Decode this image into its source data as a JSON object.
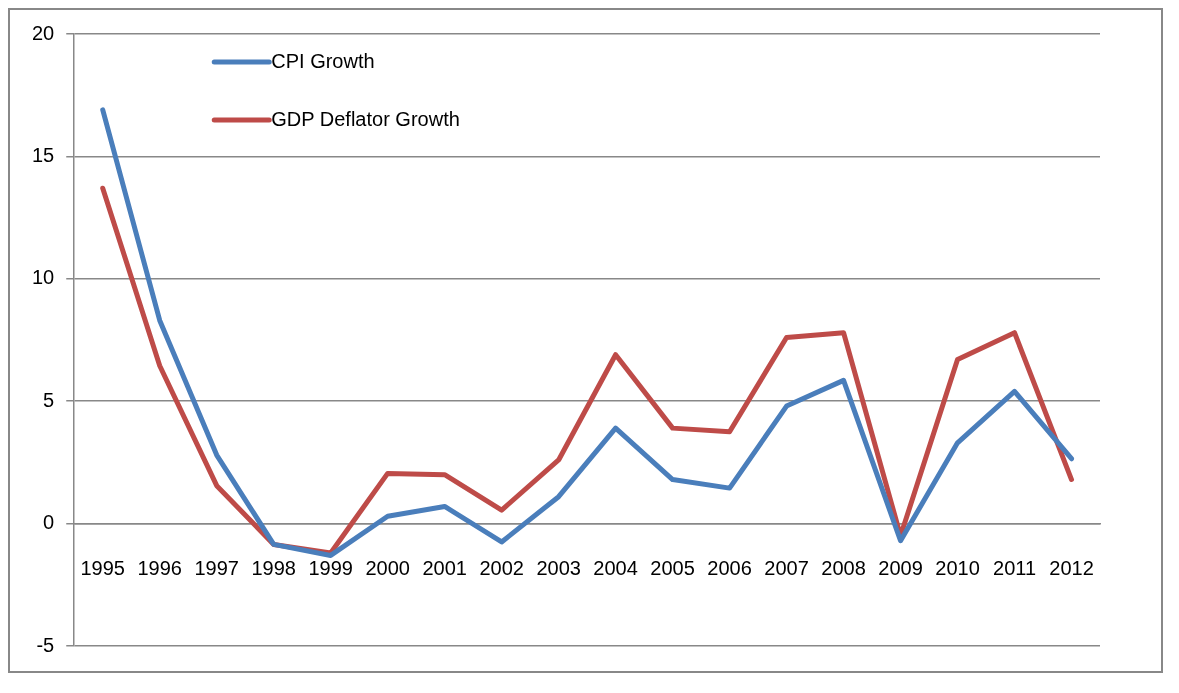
{
  "chart_data": {
    "type": "line",
    "categories": [
      "1995",
      "1996",
      "1997",
      "1998",
      "1999",
      "2000",
      "2001",
      "2002",
      "2003",
      "2004",
      "2005",
      "2006",
      "2007",
      "2008",
      "2009",
      "2010",
      "2011",
      "2012"
    ],
    "series": [
      {
        "name": "CPI Growth",
        "color": "#4a7ebb",
        "values": [
          16.9,
          8.3,
          2.8,
          -0.85,
          -1.3,
          0.3,
          0.7,
          -0.75,
          1.1,
          3.9,
          1.8,
          1.45,
          4.8,
          5.85,
          -0.7,
          3.3,
          5.4,
          2.65
        ]
      },
      {
        "name": "GDP Deflator Growth",
        "color": "#be4b48",
        "values": [
          13.7,
          6.45,
          1.55,
          -0.85,
          -1.2,
          2.05,
          2.0,
          0.55,
          2.6,
          6.9,
          3.9,
          3.75,
          7.6,
          7.8,
          -0.5,
          6.7,
          7.8,
          1.8
        ]
      }
    ],
    "ylim": [
      -5,
      20
    ],
    "yticks": [
      -5,
      0,
      5,
      10,
      15,
      20
    ],
    "grid": "y",
    "legend": "top left",
    "marker": "none",
    "line_style": "solid"
  }
}
